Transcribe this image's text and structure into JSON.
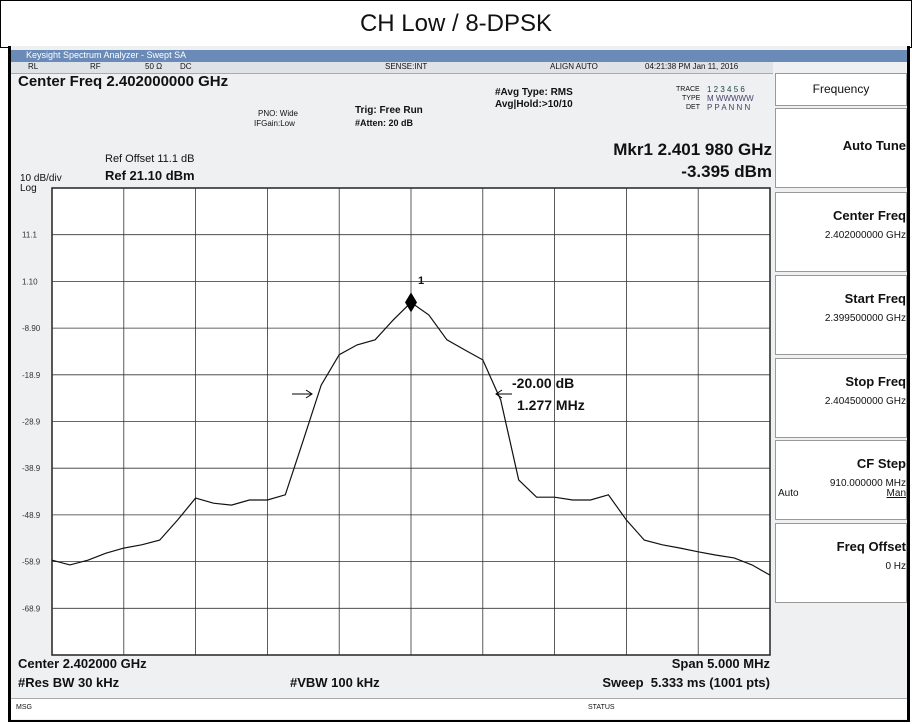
{
  "title": "CH Low / 8-DPSK",
  "window_title": "Keysight Spectrum Analyzer - Swept SA",
  "status_bar": [
    "RL",
    "RF",
    "50 Ω",
    "DC",
    "SENSE:INT",
    "ALIGN AUTO",
    "04:21:38 PM Jan 11, 2016"
  ],
  "header": {
    "center_freq": "Center Freq 2.402000000 GHz",
    "pno": "PNO: Wide",
    "ifgain": "IFGain:Low",
    "trig": "Trig: Free Run",
    "atten": "#Atten: 20 dB",
    "avg_type": "#Avg Type: RMS",
    "avg_hold": "Avg|Hold:>10/10",
    "trace_label": "TRACE",
    "trace_value": "1 2 3 4 5 6",
    "type_label": "TYPE",
    "type_value": "M WWWWW",
    "det_label": "DET",
    "det_value": "P P A N N N",
    "ref_offset": "Ref Offset 11.1 dB",
    "scale": "10 dB/div",
    "log": "Log",
    "ref_level": "Ref 21.10 dBm",
    "marker_freq": "Mkr1 2.401 980 GHz",
    "marker_level": "-3.395 dBm"
  },
  "annotations": {
    "marker_id": "1",
    "obw_db": "-20.00 dB",
    "obw_bw": "1.277 MHz"
  },
  "footer": {
    "center": "Center 2.402000 GHz",
    "rbw": "#Res BW 30 kHz",
    "vbw": "#VBW 100 kHz",
    "span": "Span 5.000 MHz",
    "sweep": "Sweep  5.333 ms (1001 pts)",
    "msg": "MSG",
    "status": "STATUS"
  },
  "softkeys": {
    "menu": "Frequency",
    "keys": [
      {
        "label": "Auto Tune"
      },
      {
        "label": "Center Freq",
        "value": "2.402000000 GHz"
      },
      {
        "label": "Start Freq",
        "value": "2.399500000 GHz"
      },
      {
        "label": "Stop Freq",
        "value": "2.404500000 GHz"
      },
      {
        "label": "CF Step",
        "value": "910.000000 MHz",
        "left": "Auto",
        "right": "Man"
      },
      {
        "label": "Freq Offset",
        "value": "0 Hz"
      }
    ]
  },
  "chart_data": {
    "type": "line",
    "xlim": [
      2.3995,
      2.4045
    ],
    "ylim": [
      -78.9,
      21.1
    ],
    "yticks": [
      11.1,
      {
        "value": 1.1,
        "label": "1.10"
      },
      {
        "value": -8.9,
        "label": "-8.90"
      },
      -18.9,
      -28.9,
      -38.9,
      -48.9,
      -58.9,
      -68.9
    ],
    "grid": true,
    "series": [
      {
        "color": "#111111",
        "x": [
          2.3995,
          2.399625,
          2.39975,
          2.399875,
          2.4,
          2.400125,
          2.40025,
          2.400375,
          2.4005,
          2.400625,
          2.40075,
          2.400875,
          2.401,
          2.401125,
          2.40125,
          2.401375,
          2.4015,
          2.401625,
          2.40175,
          2.401875,
          2.402,
          2.402125,
          2.40225,
          2.402375,
          2.4025,
          2.402625,
          2.40275,
          2.402875,
          2.403,
          2.403125,
          2.40325,
          2.403375,
          2.4035,
          2.403625,
          2.40375,
          2.403875,
          2.404,
          2.404125,
          2.40425,
          2.404375,
          2.4045
        ],
        "values": [
          -58.6,
          -59.6,
          -58.6,
          -57.1,
          -56,
          -55.3,
          -54.3,
          -50,
          -45.3,
          -46.4,
          -46.8,
          -45.7,
          -45.7,
          -44.6,
          -32.9,
          -21.1,
          -14.6,
          -12.5,
          -11.4,
          -7.2,
          -3.4,
          -6.1,
          -11.4,
          -13.6,
          -15.7,
          -24.3,
          -41.4,
          -45.1,
          -45.1,
          -45.7,
          -45.7,
          -44.6,
          -50,
          -54.3,
          -55.3,
          -56,
          -56.8,
          -57.5,
          -58.1,
          -59.6,
          -61.8
        ]
      }
    ]
  }
}
